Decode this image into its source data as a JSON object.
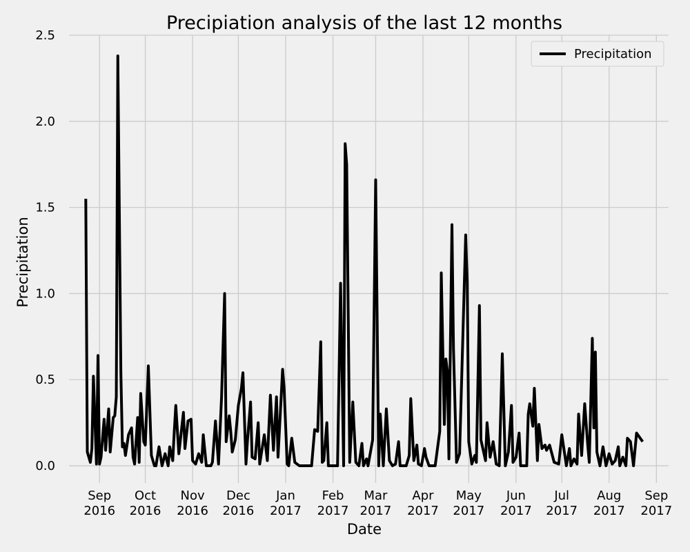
{
  "chart_data": {
    "type": "line",
    "title": "Precipiation analysis of the last 12 months",
    "xlabel": "Date",
    "ylabel": "Precipitation",
    "x": [
      "2016-08-23",
      "2016-08-24",
      "2016-08-26",
      "2016-08-27",
      "2016-08-28",
      "2016-08-30",
      "2016-08-31",
      "2016-09-01",
      "2016-09-02",
      "2016-09-04",
      "2016-09-05",
      "2016-09-07",
      "2016-09-08",
      "2016-09-10",
      "2016-09-11",
      "2016-09-12",
      "2016-09-13",
      "2016-09-15",
      "2016-09-16",
      "2016-09-17",
      "2016-09-18",
      "2016-09-20",
      "2016-09-22",
      "2016-09-23",
      "2016-09-24",
      "2016-09-26",
      "2016-09-27",
      "2016-09-28",
      "2016-09-30",
      "2016-10-01",
      "2016-10-03",
      "2016-10-05",
      "2016-10-07",
      "2016-10-08",
      "2016-10-10",
      "2016-10-12",
      "2016-10-14",
      "2016-10-16",
      "2016-10-17",
      "2016-10-19",
      "2016-10-20",
      "2016-10-21",
      "2016-10-23",
      "2016-10-24",
      "2016-10-26",
      "2016-10-27",
      "2016-10-29",
      "2016-10-31",
      "2016-11-01",
      "2016-11-03",
      "2016-11-05",
      "2016-11-07",
      "2016-11-08",
      "2016-11-10",
      "2016-11-13",
      "2016-11-14",
      "2016-11-16",
      "2016-11-18",
      "2016-11-20",
      "2016-11-22",
      "2016-11-23",
      "2016-11-25",
      "2016-11-26",
      "2016-11-27",
      "2016-11-29",
      "2016-12-01",
      "2016-12-03",
      "2016-12-04",
      "2016-12-06",
      "2016-12-07",
      "2016-12-09",
      "2016-12-10",
      "2016-12-12",
      "2016-12-14",
      "2016-12-15",
      "2016-12-18",
      "2016-12-20",
      "2016-12-22",
      "2016-12-24",
      "2016-12-26",
      "2016-12-27",
      "2016-12-30",
      "2016-12-31",
      "2017-01-02",
      "2017-01-03",
      "2017-01-05",
      "2017-01-07",
      "2017-01-10",
      "2017-01-13",
      "2017-01-16",
      "2017-01-18",
      "2017-01-20",
      "2017-01-22",
      "2017-01-24",
      "2017-01-25",
      "2017-01-26",
      "2017-01-28",
      "2017-01-29",
      "2017-02-01",
      "2017-02-04",
      "2017-02-06",
      "2017-02-08",
      "2017-02-09",
      "2017-02-10",
      "2017-02-12",
      "2017-02-14",
      "2017-02-16",
      "2017-02-18",
      "2017-02-20",
      "2017-02-21",
      "2017-02-23",
      "2017-02-24",
      "2017-02-27",
      "2017-03-01",
      "2017-03-03",
      "2017-03-04",
      "2017-03-06",
      "2017-03-08",
      "2017-03-10",
      "2017-03-12",
      "2017-03-14",
      "2017-03-16",
      "2017-03-17",
      "2017-03-21",
      "2017-03-23",
      "2017-03-24",
      "2017-03-26",
      "2017-03-28",
      "2017-03-29",
      "2017-03-31",
      "2017-04-02",
      "2017-04-03",
      "2017-04-05",
      "2017-04-09",
      "2017-04-12",
      "2017-04-13",
      "2017-04-15",
      "2017-04-16",
      "2017-04-17",
      "2017-04-18",
      "2017-04-20",
      "2017-04-21",
      "2017-04-23",
      "2017-04-25",
      "2017-04-29",
      "2017-04-30",
      "2017-05-01",
      "2017-05-03",
      "2017-05-05",
      "2017-05-06",
      "2017-05-08",
      "2017-05-09",
      "2017-05-12",
      "2017-05-13",
      "2017-05-15",
      "2017-05-17",
      "2017-05-19",
      "2017-05-21",
      "2017-05-23",
      "2017-05-25",
      "2017-05-27",
      "2017-05-29",
      "2017-05-30",
      "2017-06-01",
      "2017-06-03",
      "2017-06-04",
      "2017-06-08",
      "2017-06-09",
      "2017-06-10",
      "2017-06-12",
      "2017-06-13",
      "2017-06-15",
      "2017-06-16",
      "2017-06-18",
      "2017-06-20",
      "2017-06-21",
      "2017-06-23",
      "2017-06-26",
      "2017-06-29",
      "2017-07-01",
      "2017-07-03",
      "2017-07-04",
      "2017-07-06",
      "2017-07-07",
      "2017-07-09",
      "2017-07-11",
      "2017-07-12",
      "2017-07-14",
      "2017-07-16",
      "2017-07-18",
      "2017-07-19",
      "2017-07-21",
      "2017-07-22",
      "2017-07-23",
      "2017-07-24",
      "2017-07-26",
      "2017-07-28",
      "2017-07-30",
      "2017-08-01",
      "2017-08-03",
      "2017-08-05",
      "2017-08-07",
      "2017-08-08",
      "2017-08-10",
      "2017-08-12",
      "2017-08-13",
      "2017-08-15",
      "2017-08-17",
      "2017-08-19",
      "2017-08-23"
    ],
    "series": [
      {
        "name": "Precipitation",
        "color": "#000000",
        "values": [
          1.55,
          0.08,
          0.02,
          0.1,
          0.52,
          0.01,
          0.64,
          0.01,
          0.05,
          0.27,
          0.09,
          0.33,
          0.08,
          0.28,
          0.29,
          0.4,
          2.38,
          0.54,
          0.11,
          0.13,
          0.06,
          0.18,
          0.22,
          0.05,
          0.01,
          0.28,
          0.02,
          0.42,
          0.14,
          0.12,
          0.58,
          0.06,
          0.0,
          0.0,
          0.11,
          0.0,
          0.07,
          0.0,
          0.11,
          0.03,
          0.2,
          0.35,
          0.07,
          0.15,
          0.31,
          0.1,
          0.26,
          0.27,
          0.03,
          0.01,
          0.07,
          0.02,
          0.18,
          0.0,
          0.0,
          0.02,
          0.26,
          0.01,
          0.4,
          1.0,
          0.14,
          0.29,
          0.2,
          0.08,
          0.15,
          0.35,
          0.45,
          0.54,
          0.01,
          0.15,
          0.37,
          0.05,
          0.04,
          0.25,
          0.01,
          0.18,
          0.03,
          0.41,
          0.09,
          0.4,
          0.05,
          0.56,
          0.45,
          0.01,
          0.0,
          0.16,
          0.02,
          0.0,
          0.0,
          0.0,
          0.0,
          0.21,
          0.2,
          0.72,
          0.02,
          0.03,
          0.25,
          0.0,
          0.0,
          0.0,
          1.06,
          0.0,
          1.87,
          1.75,
          0.02,
          0.37,
          0.02,
          0.0,
          0.13,
          0.0,
          0.04,
          0.0,
          0.15,
          1.66,
          0.0,
          0.3,
          0.0,
          0.33,
          0.03,
          0.0,
          0.01,
          0.14,
          0.0,
          0.0,
          0.06,
          0.39,
          0.03,
          0.12,
          0.01,
          0.0,
          0.1,
          0.05,
          0.0,
          0.0,
          0.2,
          1.12,
          0.24,
          0.62,
          0.55,
          0.04,
          1.4,
          0.68,
          0.02,
          0.07,
          1.34,
          1.07,
          0.14,
          0.01,
          0.06,
          0.02,
          0.93,
          0.15,
          0.03,
          0.25,
          0.05,
          0.14,
          0.01,
          0.0,
          0.65,
          0.0,
          0.08,
          0.35,
          0.02,
          0.05,
          0.19,
          0.0,
          0.0,
          0.3,
          0.36,
          0.23,
          0.45,
          0.03,
          0.24,
          0.1,
          0.12,
          0.09,
          0.12,
          0.02,
          0.01,
          0.18,
          0.06,
          0.0,
          0.1,
          0.0,
          0.04,
          0.01,
          0.3,
          0.06,
          0.36,
          0.12,
          0.02,
          0.74,
          0.22,
          0.66,
          0.08,
          0.0,
          0.11,
          0.0,
          0.07,
          0.01,
          0.03,
          0.11,
          0.0,
          0.05,
          0.0,
          0.16,
          0.14,
          0.0,
          0.19,
          0.14
        ]
      }
    ],
    "xlim": [
      "2016-08-12",
      "2017-09-09"
    ],
    "xticks": [
      {
        "value": "2016-09-01",
        "label": [
          "Sep",
          "2016"
        ]
      },
      {
        "value": "2016-10-01",
        "label": [
          "Oct",
          "2016"
        ]
      },
      {
        "value": "2016-11-01",
        "label": [
          "Nov",
          "2016"
        ]
      },
      {
        "value": "2016-12-01",
        "label": [
          "Dec",
          "2016"
        ]
      },
      {
        "value": "2017-01-01",
        "label": [
          "Jan",
          "2017"
        ]
      },
      {
        "value": "2017-02-01",
        "label": [
          "Feb",
          "2017"
        ]
      },
      {
        "value": "2017-03-01",
        "label": [
          "Mar",
          "2017"
        ]
      },
      {
        "value": "2017-04-01",
        "label": [
          "Apr",
          "2017"
        ]
      },
      {
        "value": "2017-05-01",
        "label": [
          "May",
          "2017"
        ]
      },
      {
        "value": "2017-06-01",
        "label": [
          "Jun",
          "2017"
        ]
      },
      {
        "value": "2017-07-01",
        "label": [
          "Jul",
          "2017"
        ]
      },
      {
        "value": "2017-08-01",
        "label": [
          "Aug",
          "2017"
        ]
      },
      {
        "value": "2017-09-01",
        "label": [
          "Sep",
          "2017"
        ]
      }
    ],
    "ylim": [
      -0.1,
      2.5
    ],
    "yticks": [
      {
        "value": 0,
        "label": "0.0"
      },
      {
        "value": 0.5,
        "label": "0.5"
      },
      {
        "value": 1,
        "label": "1.0"
      },
      {
        "value": 1.5,
        "label": "1.5"
      },
      {
        "value": 2,
        "label": "2.0"
      },
      {
        "value": 2.5,
        "label": "2.5"
      }
    ],
    "grid": true,
    "legend": "upper right"
  }
}
